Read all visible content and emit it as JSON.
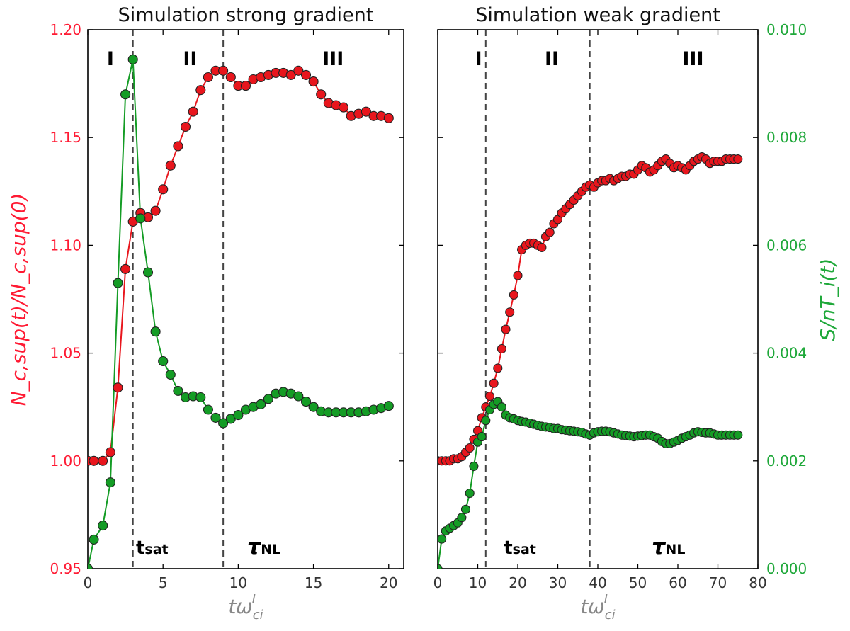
{
  "figure": {
    "colors": {
      "red_series": "#e8161d",
      "green_series": "#149c25",
      "left_axis_text": "#ff1a33",
      "right_axis_text": "#1fa83a",
      "dashed_lines": "#444444"
    }
  },
  "chart_data": [
    {
      "type": "scatter",
      "title": "Simulation strong gradient",
      "xlabel": "tω_ci^I",
      "ylabel_left": "N_c,sup(t)/N_c,sup(0)",
      "xlim": [
        0,
        21
      ],
      "ylim_left": [
        0.95,
        1.2
      ],
      "ylim_right": [
        0.0,
        0.01
      ],
      "x_ticks": [
        "0",
        "5",
        "10",
        "15",
        "20"
      ],
      "y_ticks_left": [
        "0.95",
        "1.00",
        "1.05",
        "1.10",
        "1.15",
        "1.20"
      ],
      "vlines": [
        3,
        9
      ],
      "region_labels": [
        {
          "text": "I",
          "x": 1.5
        },
        {
          "text": "II",
          "x": 6.8
        },
        {
          "text": "III",
          "x": 16.3
        }
      ],
      "markers": [
        {
          "text": "t",
          "sub": "sat",
          "x": 3.2
        },
        {
          "text": "τ",
          "sub": "NL",
          "x": 10.6
        }
      ],
      "series": [
        {
          "axis": "left",
          "color": "#e8161d",
          "x": [
            0,
            0.4,
            1.0,
            1.5,
            2.0,
            2.5,
            3.0,
            3.5,
            4.0,
            4.5,
            5.0,
            5.5,
            6.0,
            6.5,
            7.0,
            7.5,
            8.0,
            8.5,
            9.0,
            9.5,
            10.0,
            10.5,
            11.0,
            11.5,
            12.0,
            12.5,
            13.0,
            13.5,
            14.0,
            14.5,
            15.0,
            15.5,
            16.0,
            16.5,
            17.0,
            17.5,
            18.0,
            18.5,
            19.0,
            19.5,
            20.0
          ],
          "y": [
            1.0,
            1.0,
            1.0,
            1.004,
            1.034,
            1.089,
            1.111,
            1.115,
            1.113,
            1.116,
            1.126,
            1.137,
            1.146,
            1.155,
            1.162,
            1.172,
            1.178,
            1.181,
            1.181,
            1.178,
            1.174,
            1.174,
            1.177,
            1.178,
            1.179,
            1.18,
            1.18,
            1.179,
            1.181,
            1.179,
            1.176,
            1.17,
            1.166,
            1.165,
            1.164,
            1.16,
            1.161,
            1.162,
            1.16,
            1.16,
            1.159
          ]
        },
        {
          "axis": "right",
          "color": "#149c25",
          "x": [
            0,
            0.4,
            1.0,
            1.5,
            2.0,
            2.5,
            3.0,
            3.5,
            4.0,
            4.5,
            5.0,
            5.5,
            6.0,
            6.5,
            7.0,
            7.5,
            8.0,
            8.5,
            9.0,
            9.5,
            10.0,
            10.5,
            11.0,
            11.5,
            12.0,
            12.5,
            13.0,
            13.5,
            14.0,
            14.5,
            15.0,
            15.5,
            16.0,
            16.5,
            17.0,
            17.5,
            18.0,
            18.5,
            19.0,
            19.5,
            20.0
          ],
          "y": [
            0.0,
            0.00054,
            0.0008,
            0.0016,
            0.0053,
            0.0088,
            0.00945,
            0.0065,
            0.0055,
            0.0044,
            0.00385,
            0.0036,
            0.0033,
            0.00318,
            0.0032,
            0.00318,
            0.00295,
            0.0028,
            0.0027,
            0.00278,
            0.00285,
            0.00295,
            0.003,
            0.00305,
            0.00315,
            0.00325,
            0.00328,
            0.00325,
            0.0032,
            0.0031,
            0.003,
            0.00292,
            0.0029,
            0.0029,
            0.0029,
            0.0029,
            0.0029,
            0.00292,
            0.00295,
            0.00298,
            0.00302
          ]
        }
      ]
    },
    {
      "type": "scatter",
      "title": "Simulation weak gradient",
      "xlabel": "tω_ci^I",
      "ylabel_right": "S/nT_i(t)",
      "xlim": [
        0,
        80
      ],
      "ylim_left": [
        0.95,
        1.2
      ],
      "ylim_right": [
        0.0,
        0.01
      ],
      "x_ticks": [
        "0",
        "10",
        "20",
        "30",
        "40",
        "50",
        "60",
        "70",
        "80"
      ],
      "y_ticks_right": [
        "0.000",
        "0.002",
        "0.004",
        "0.006",
        "0.008",
        "0.010"
      ],
      "vlines": [
        12,
        38
      ],
      "region_labels": [
        {
          "text": "I",
          "x": 10.2
        },
        {
          "text": "II",
          "x": 28.5
        },
        {
          "text": "III",
          "x": 63.8
        }
      ],
      "markers": [
        {
          "text": "t",
          "sub": "sat",
          "x": 16.5
        },
        {
          "text": "τ",
          "sub": "NL",
          "x": 53.5
        }
      ],
      "series": [
        {
          "axis": "left",
          "color": "#e8161d",
          "x": [
            0,
            1,
            2,
            3,
            4,
            5,
            6,
            7,
            8,
            9,
            10,
            11,
            12,
            13,
            14,
            15,
            16,
            17,
            18,
            19,
            20,
            21,
            22,
            23,
            24,
            25,
            26,
            27,
            28,
            29,
            30,
            31,
            32,
            33,
            34,
            35,
            36,
            37,
            38,
            39,
            40,
            41,
            42,
            43,
            44,
            45,
            46,
            47,
            48,
            49,
            50,
            51,
            52,
            53,
            54,
            55,
            56,
            57,
            58,
            59,
            60,
            61,
            62,
            63,
            64,
            65,
            66,
            67,
            68,
            69,
            70,
            71,
            72,
            73,
            74,
            75
          ],
          "y": [
            1.0,
            1.0,
            1.0,
            1.0,
            1.001,
            1.001,
            1.002,
            1.004,
            1.006,
            1.01,
            1.014,
            1.02,
            1.025,
            1.03,
            1.036,
            1.043,
            1.052,
            1.061,
            1.069,
            1.077,
            1.086,
            1.098,
            1.1,
            1.101,
            1.101,
            1.1,
            1.099,
            1.104,
            1.106,
            1.11,
            1.112,
            1.115,
            1.117,
            1.119,
            1.121,
            1.123,
            1.125,
            1.127,
            1.128,
            1.127,
            1.129,
            1.13,
            1.13,
            1.131,
            1.13,
            1.131,
            1.132,
            1.132,
            1.133,
            1.133,
            1.135,
            1.137,
            1.136,
            1.134,
            1.135,
            1.137,
            1.139,
            1.14,
            1.138,
            1.136,
            1.137,
            1.136,
            1.135,
            1.137,
            1.139,
            1.14,
            1.141,
            1.14,
            1.138,
            1.139,
            1.139,
            1.139,
            1.14,
            1.14,
            1.14,
            1.14
          ]
        },
        {
          "axis": "right",
          "color": "#149c25",
          "x": [
            0,
            1,
            2,
            3,
            4,
            5,
            6,
            7,
            8,
            9,
            10,
            11,
            12,
            13,
            14,
            15,
            16,
            17,
            18,
            19,
            20,
            21,
            22,
            23,
            24,
            25,
            26,
            27,
            28,
            29,
            30,
            31,
            32,
            33,
            34,
            35,
            36,
            37,
            38,
            39,
            40,
            41,
            42,
            43,
            44,
            45,
            46,
            47,
            48,
            49,
            50,
            51,
            52,
            53,
            54,
            55,
            56,
            57,
            58,
            59,
            60,
            61,
            62,
            63,
            64,
            65,
            66,
            67,
            68,
            69,
            70,
            71,
            72,
            73,
            74,
            75
          ],
          "y": [
            0.0,
            0.00055,
            0.0007,
            0.00075,
            0.0008,
            0.00085,
            0.00095,
            0.0011,
            0.0014,
            0.0019,
            0.00235,
            0.00245,
            0.00275,
            0.00295,
            0.00305,
            0.0031,
            0.003,
            0.00285,
            0.0028,
            0.00278,
            0.00275,
            0.00273,
            0.00272,
            0.0027,
            0.00268,
            0.00266,
            0.00264,
            0.00263,
            0.00262,
            0.0026,
            0.0026,
            0.00258,
            0.00257,
            0.00256,
            0.00255,
            0.00254,
            0.00253,
            0.0025,
            0.00248,
            0.00252,
            0.00254,
            0.00255,
            0.00255,
            0.00254,
            0.00252,
            0.0025,
            0.00248,
            0.00247,
            0.00246,
            0.00245,
            0.00246,
            0.00247,
            0.00248,
            0.00248,
            0.00245,
            0.00242,
            0.00236,
            0.00232,
            0.00232,
            0.00235,
            0.00238,
            0.00242,
            0.00245,
            0.00248,
            0.00252,
            0.00254,
            0.00253,
            0.00252,
            0.00252,
            0.0025,
            0.00248,
            0.00248,
            0.00248,
            0.00248,
            0.00248,
            0.00248
          ]
        }
      ]
    }
  ]
}
